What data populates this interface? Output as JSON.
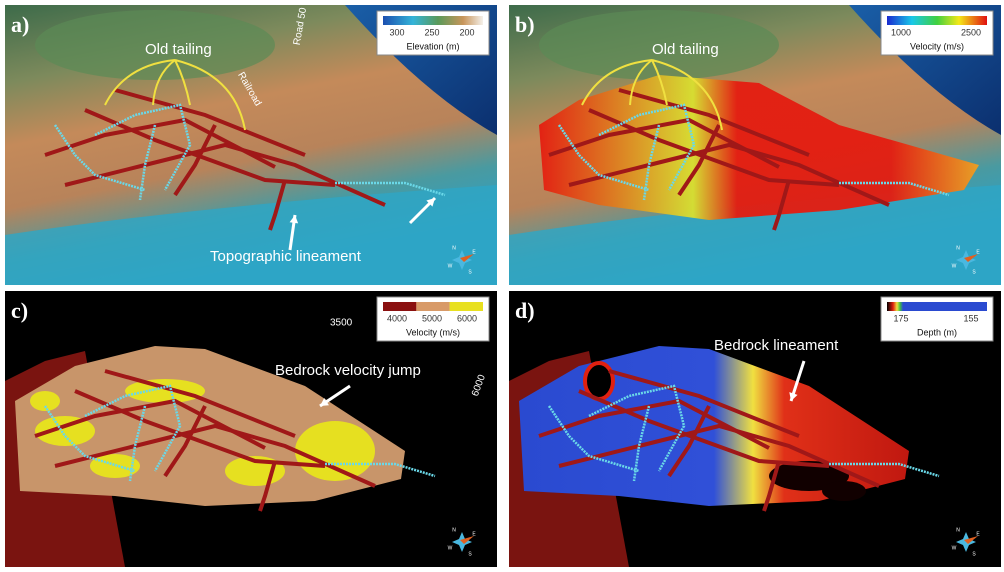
{
  "panels": [
    {
      "label": "a)",
      "legend": {
        "ticks": [
          "300",
          "250",
          "200"
        ],
        "title": "Elevation (m)"
      },
      "annotations": [
        "Old tailing",
        "Railroad",
        "Road 50",
        "Topographic lineament"
      ],
      "compass": [
        "N",
        "E",
        "S",
        "W"
      ]
    },
    {
      "label": "b)",
      "legend": {
        "ticks": [
          "1000",
          "2500"
        ],
        "title": "Velocity (m/s)"
      },
      "annotations": [
        "Old tailing"
      ],
      "compass": [
        "N",
        "E",
        "S",
        "W"
      ]
    },
    {
      "label": "c)",
      "legend": {
        "ticks": [
          "4000",
          "5000",
          "6000"
        ],
        "title": "Velocity (m/s)"
      },
      "annotations": [
        "Bedrock velocity jump",
        "3500",
        "6000"
      ],
      "compass": [
        "N",
        "E",
        "S",
        "W"
      ]
    },
    {
      "label": "d)",
      "legend": {
        "ticks": [
          "175",
          "155"
        ],
        "title": "Depth (m)"
      },
      "annotations": [
        "Bedrock lineament"
      ],
      "compass": [
        "N",
        "E",
        "S",
        "W"
      ]
    }
  ]
}
